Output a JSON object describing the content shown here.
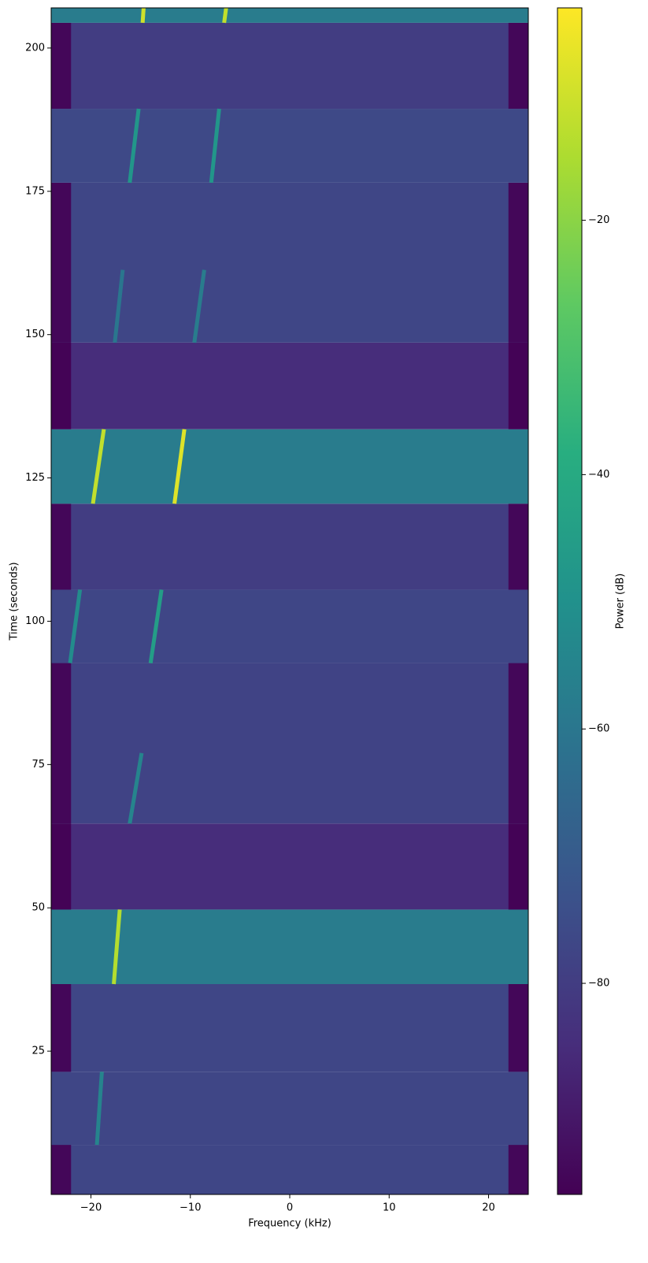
{
  "chart_data": {
    "type": "spectrogram",
    "x_label": "Frequency (kHz)",
    "y_label": "Time (seconds)",
    "colorbar_label": "Power (dB)",
    "colormap": "viridis",
    "xlim": [
      -24,
      24
    ],
    "xticks": [
      {
        "value": -20,
        "label": "−20"
      },
      {
        "value": -10,
        "label": "−10"
      },
      0,
      10,
      20
    ],
    "ylim": [
      0,
      207
    ],
    "yticks": [
      25,
      50,
      75,
      100,
      125,
      150,
      175,
      200
    ],
    "clim": [
      -96.6,
      -3.3
    ],
    "cticks": [
      {
        "value": -20,
        "label": "−20"
      },
      {
        "value": -40,
        "label": "−40"
      },
      {
        "value": -60,
        "label": "−60"
      },
      {
        "value": -80,
        "label": "−80"
      }
    ],
    "passband": [
      -22,
      22
    ],
    "segments": [
      {
        "t0": 0,
        "t1": 8.65,
        "power": -77,
        "edge_power": -95
      },
      {
        "t0": 8.65,
        "t1": 21.4,
        "power": -77
      },
      {
        "t0": 21.4,
        "t1": 36.7,
        "power": -77,
        "edge_power": -95
      },
      {
        "t0": 36.7,
        "t1": 49.7,
        "power": -58
      },
      {
        "t0": 49.7,
        "t1": 64.7,
        "power": -85,
        "edge_power": -96
      },
      {
        "t0": 64.7,
        "t1": 92.7,
        "power": -78,
        "edge_power": -95
      },
      {
        "t0": 92.7,
        "t1": 105.5,
        "power": -77
      },
      {
        "t0": 105.5,
        "t1": 120.5,
        "power": -80,
        "edge_power": -95
      },
      {
        "t0": 120.5,
        "t1": 133.5,
        "power": -58
      },
      {
        "t0": 133.5,
        "t1": 148.6,
        "power": -85,
        "edge_power": -96
      },
      {
        "t0": 148.6,
        "t1": 176.5,
        "power": -77,
        "edge_power": -95
      },
      {
        "t0": 176.5,
        "t1": 189.4,
        "power": -76
      },
      {
        "t0": 189.4,
        "t1": 204.4,
        "power": -80,
        "edge_power": -95
      },
      {
        "t0": 204.4,
        "t1": 207,
        "power": -58
      }
    ],
    "traces": [
      {
        "t0": 8.65,
        "t1": 21.4,
        "f0": -19.4,
        "f1": -18.9,
        "power": -55
      },
      {
        "t0": 36.7,
        "t1": 49.7,
        "f0": -17.7,
        "f1": -17.1,
        "power": -14
      },
      {
        "t0": 64.7,
        "t1": 77,
        "f0": -16.1,
        "f1": -14.9,
        "power": -55
      },
      {
        "t0": 92.7,
        "t1": 105.5,
        "f0": -22.1,
        "f1": -21.1,
        "power": -52
      },
      {
        "t0": 92.7,
        "t1": 105.5,
        "f0": -14.0,
        "f1": -12.9,
        "power": -45
      },
      {
        "t0": 120.5,
        "t1": 133.5,
        "f0": -19.8,
        "f1": -18.7,
        "power": -12
      },
      {
        "t0": 120.5,
        "t1": 133.5,
        "f0": -11.6,
        "f1": -10.6,
        "power": -8
      },
      {
        "t0": 148.6,
        "t1": 161.3,
        "f0": -17.6,
        "f1": -16.8,
        "power": -60
      },
      {
        "t0": 148.6,
        "t1": 161.3,
        "f0": -9.6,
        "f1": -8.6,
        "power": -58
      },
      {
        "t0": 176.5,
        "t1": 189.4,
        "f0": -16.1,
        "f1": -15.2,
        "power": -48
      },
      {
        "t0": 176.5,
        "t1": 189.4,
        "f0": -7.9,
        "f1": -7.1,
        "power": -48
      },
      {
        "t0": 204.4,
        "t1": 207,
        "f0": -14.8,
        "f1": -14.7,
        "power": -10
      },
      {
        "t0": 204.4,
        "t1": 207,
        "f0": -6.6,
        "f1": -6.4,
        "power": -12
      }
    ]
  }
}
